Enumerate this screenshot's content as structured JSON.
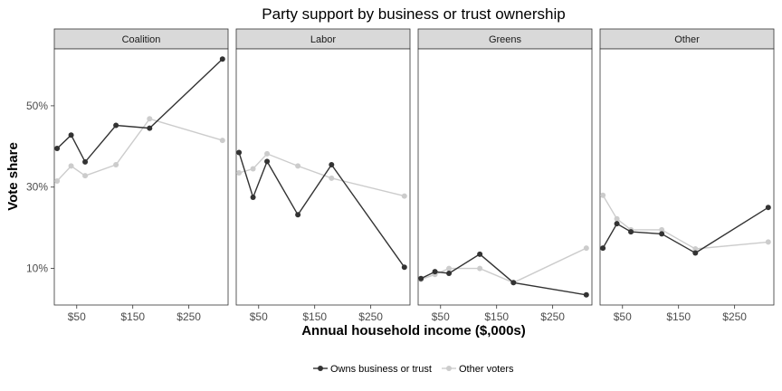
{
  "chart_data": {
    "type": "line",
    "title": "Party support by business or trust ownership",
    "xlabel": "Annual household income ($,000s)",
    "ylabel": "Vote share",
    "x_ticks": [
      50,
      150,
      250
    ],
    "x_tick_labels": [
      "$50",
      "$150",
      "$250"
    ],
    "y_ticks": [
      10,
      30,
      50
    ],
    "y_tick_labels": [
      "10%",
      "30%",
      "50%"
    ],
    "xlim": [
      10,
      320
    ],
    "ylim": [
      1,
      64
    ],
    "grid": false,
    "legend_position": "bottom",
    "colors": {
      "owns": "#333333",
      "other": "#cccccc"
    },
    "legend": [
      {
        "key": "owns",
        "label": "Owns business or trust"
      },
      {
        "key": "other",
        "label": "Other voters"
      }
    ],
    "panels": [
      {
        "name": "Coalition",
        "series": [
          {
            "key": "owns",
            "x": [
              15,
              40,
              65,
              120,
              180,
              310
            ],
            "y": [
              39.5,
              42.8,
              36.2,
              45.2,
              44.5,
              61.5
            ]
          },
          {
            "key": "other",
            "x": [
              15,
              40,
              65,
              120,
              180,
              310
            ],
            "y": [
              31.5,
              35.2,
              32.8,
              35.5,
              46.8,
              41.5
            ]
          }
        ]
      },
      {
        "name": "Labor",
        "series": [
          {
            "key": "owns",
            "x": [
              15,
              40,
              65,
              120,
              180,
              310
            ],
            "y": [
              38.5,
              27.5,
              36.3,
              23.2,
              35.5,
              10.3
            ]
          },
          {
            "key": "other",
            "x": [
              15,
              40,
              65,
              120,
              180,
              310
            ],
            "y": [
              33.5,
              34.5,
              38.2,
              35.2,
              32.2,
              27.8
            ]
          }
        ]
      },
      {
        "name": "Greens",
        "series": [
          {
            "key": "owns",
            "x": [
              15,
              40,
              65,
              120,
              180,
              310
            ],
            "y": [
              7.5,
              9.2,
              8.8,
              13.5,
              6.5,
              3.5
            ]
          },
          {
            "key": "other",
            "x": [
              15,
              40,
              65,
              120,
              180,
              310
            ],
            "y": [
              7.3,
              8.5,
              10.0,
              10.0,
              6.5,
              15.0
            ]
          }
        ]
      },
      {
        "name": "Other",
        "series": [
          {
            "key": "owns",
            "x": [
              15,
              40,
              65,
              120,
              180,
              310
            ],
            "y": [
              15.0,
              21.0,
              19.0,
              18.5,
              13.8,
              25.0
            ]
          },
          {
            "key": "other",
            "x": [
              15,
              40,
              65,
              120,
              180,
              310
            ],
            "y": [
              28.0,
              22.2,
              19.5,
              19.5,
              14.8,
              16.5
            ]
          }
        ]
      }
    ]
  }
}
